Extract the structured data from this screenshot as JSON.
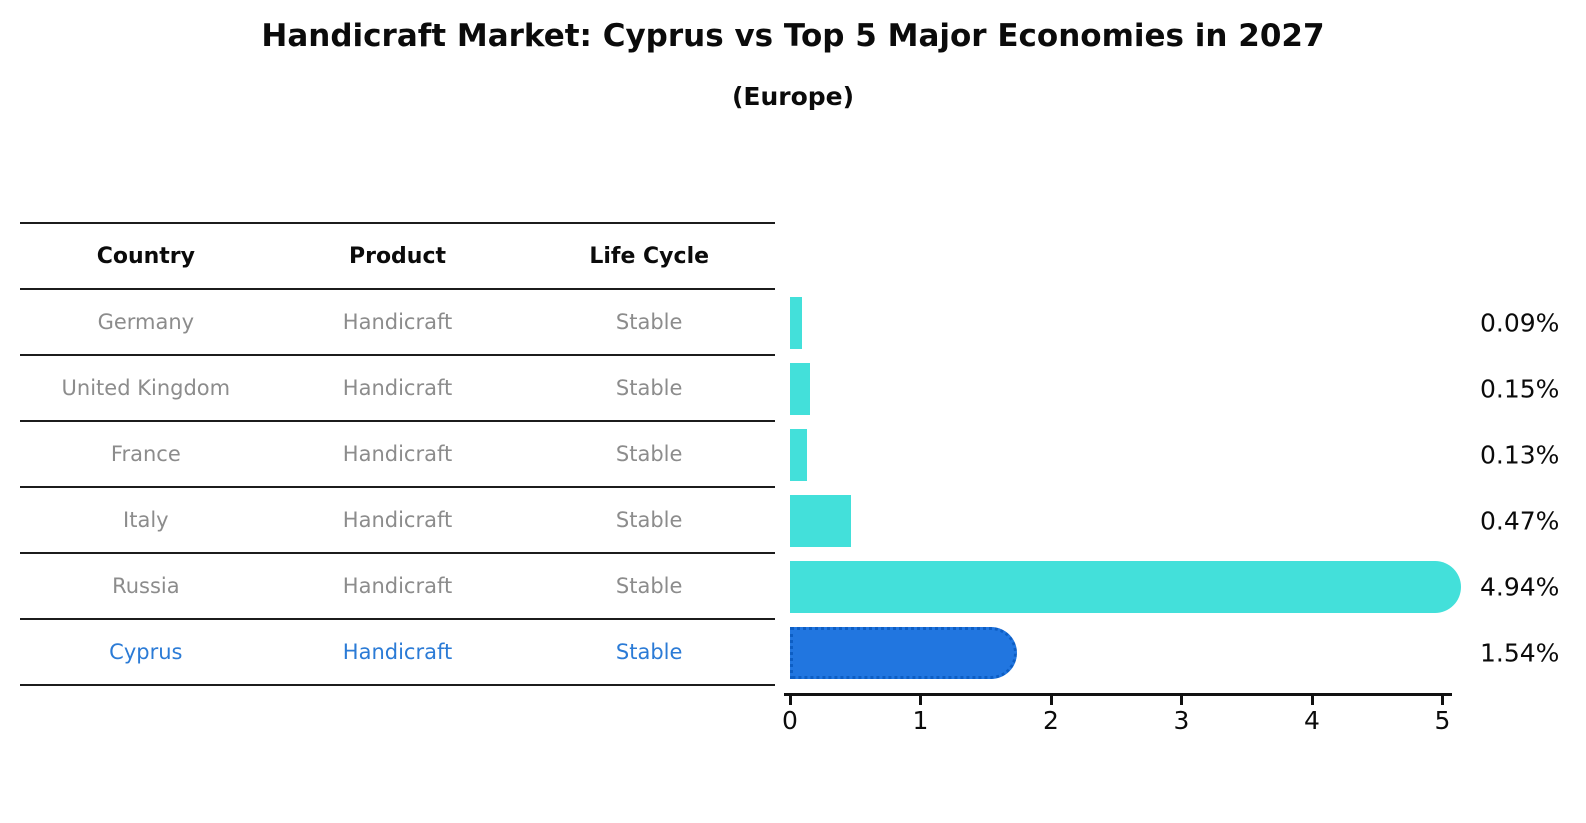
{
  "title": "Handicraft Market: Cyprus vs Top 5 Major Economies in 2027",
  "subtitle": "(Europe)",
  "table": {
    "headers": [
      "Country",
      "Product",
      "Life Cycle"
    ],
    "rows": [
      {
        "country": "Germany",
        "product": "Handicraft",
        "life_cycle": "Stable",
        "highlight": false
      },
      {
        "country": "United Kingdom",
        "product": "Handicraft",
        "life_cycle": "Stable",
        "highlight": false
      },
      {
        "country": "France",
        "product": "Handicraft",
        "life_cycle": "Stable",
        "highlight": false
      },
      {
        "country": "Italy",
        "product": "Handicraft",
        "life_cycle": "Stable",
        "highlight": false
      },
      {
        "country": "Russia",
        "product": "Handicraft",
        "life_cycle": "Stable",
        "highlight": false
      },
      {
        "country": "Cyprus",
        "product": "Handicraft",
        "life_cycle": "Stable",
        "highlight": true
      }
    ]
  },
  "chart_data": {
    "type": "bar",
    "orientation": "horizontal",
    "title": "Handicraft Market: Cyprus vs Top 5 Major Economies in 2027",
    "subtitle": "(Europe)",
    "categories": [
      "Germany",
      "United Kingdom",
      "France",
      "Italy",
      "Russia",
      "Cyprus"
    ],
    "values": [
      0.09,
      0.15,
      0.13,
      0.47,
      4.94,
      1.54
    ],
    "value_labels": [
      "0.09%",
      "0.15%",
      "0.13%",
      "0.47%",
      "4.94%",
      "1.54%"
    ],
    "highlight_index": 5,
    "highlight_category": "Cyprus",
    "xlim": [
      0,
      5
    ],
    "x_ticks": [
      "0",
      "1",
      "2",
      "3",
      "4",
      "5"
    ],
    "grid": false,
    "legend": false,
    "bar_color": "#43E0DA",
    "highlight_color": "#2176E0"
  },
  "colors": {
    "text": "#0b0b0b",
    "muted_text": "#8c8c8c",
    "highlight_text": "#2b7bd6",
    "table_line": "#1c1c1c",
    "highlight_border": "#0d5ec4"
  }
}
